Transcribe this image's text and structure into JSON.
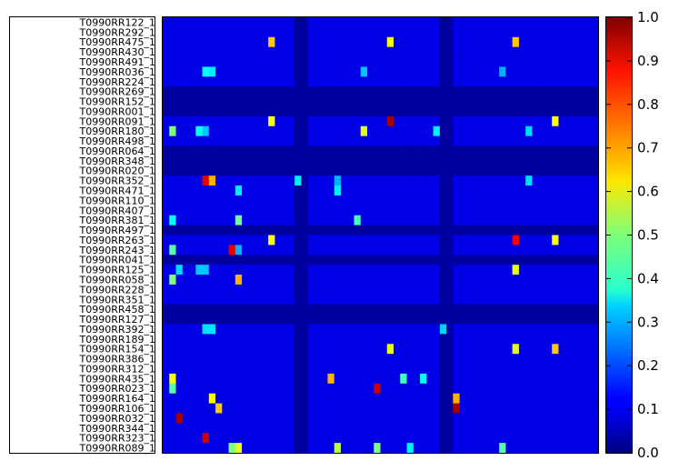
{
  "chart_data": {
    "type": "heatmap",
    "title": "",
    "xlabel": "",
    "ylabel": "",
    "colormap": "jet",
    "rows": [
      "T0990RR122_1",
      "T0990RR292_1",
      "T0990RR475_1",
      "T0990RR430_1",
      "T0990RR491_1",
      "T0990RR036_1",
      "T0990RR224_1",
      "T0990RR269_1",
      "T0990RR152_1",
      "T0990RR001_1",
      "T0990RR091_1",
      "T0990RR180_1",
      "T0990RR498_1",
      "T0990RR064_1",
      "T0990RR348_1",
      "T0990RR020_1",
      "T0990RR352_1",
      "T0990RR471_1",
      "T0990RR110_1",
      "T0990RR407_1",
      "T0990RR381_1",
      "T0990RR497_1",
      "T0990RR263_1",
      "T0990RR243_1",
      "T0990RR041_1",
      "T0990RR125_1",
      "T0990RR058_1",
      "T0990RR228_1",
      "T0990RR351_1",
      "T0990RR458_1",
      "T0990RR127_1",
      "T0990RR392_1",
      "T0990RR189_1",
      "T0990RR154_1",
      "T0990RR386_1",
      "T0990RR312_1",
      "T0990RR435_1",
      "T0990RR023_1",
      "T0990RR164_1",
      "T0990RR106_1",
      "T0990RR032_1",
      "T0990RR344_1",
      "T0990RR323_1",
      "T0990RR089_1"
    ],
    "n_cols": 66,
    "background_value": 0.1,
    "default_row_value": 0.1,
    "low_rows": [
      7,
      8,
      9,
      13,
      14,
      15,
      21,
      24,
      29,
      30
    ],
    "low_row_value": 0.03,
    "low_cols": [
      20,
      21,
      42,
      43
    ],
    "low_col_value": 0.03,
    "highlights": [
      {
        "row": 2,
        "col": 16,
        "v": 0.68
      },
      {
        "row": 2,
        "col": 34,
        "v": 0.62
      },
      {
        "row": 2,
        "col": 53,
        "v": 0.68
      },
      {
        "row": 5,
        "col": 6,
        "v": 0.38
      },
      {
        "row": 5,
        "col": 7,
        "v": 0.36
      },
      {
        "row": 5,
        "col": 30,
        "v": 0.32
      },
      {
        "row": 5,
        "col": 51,
        "v": 0.3
      },
      {
        "row": 10,
        "col": 16,
        "v": 0.62
      },
      {
        "row": 10,
        "col": 34,
        "v": 0.96
      },
      {
        "row": 10,
        "col": 59,
        "v": 0.62
      },
      {
        "row": 11,
        "col": 1,
        "v": 0.5
      },
      {
        "row": 11,
        "col": 5,
        "v": 0.38
      },
      {
        "row": 11,
        "col": 6,
        "v": 0.32
      },
      {
        "row": 11,
        "col": 30,
        "v": 0.6
      },
      {
        "row": 11,
        "col": 41,
        "v": 0.36
      },
      {
        "row": 11,
        "col": 55,
        "v": 0.34
      },
      {
        "row": 16,
        "col": 6,
        "v": 0.9
      },
      {
        "row": 16,
        "col": 7,
        "v": 0.7
      },
      {
        "row": 16,
        "col": 20,
        "v": 0.36
      },
      {
        "row": 16,
        "col": 26,
        "v": 0.3
      },
      {
        "row": 16,
        "col": 55,
        "v": 0.34
      },
      {
        "row": 17,
        "col": 11,
        "v": 0.36
      },
      {
        "row": 17,
        "col": 26,
        "v": 0.36
      },
      {
        "row": 20,
        "col": 1,
        "v": 0.38
      },
      {
        "row": 20,
        "col": 11,
        "v": 0.48
      },
      {
        "row": 20,
        "col": 29,
        "v": 0.44
      },
      {
        "row": 22,
        "col": 16,
        "v": 0.62
      },
      {
        "row": 22,
        "col": 53,
        "v": 0.88
      },
      {
        "row": 22,
        "col": 59,
        "v": 0.62
      },
      {
        "row": 23,
        "col": 1,
        "v": 0.46
      },
      {
        "row": 23,
        "col": 10,
        "v": 0.9
      },
      {
        "row": 23,
        "col": 11,
        "v": 0.3
      },
      {
        "row": 25,
        "col": 2,
        "v": 0.34
      },
      {
        "row": 25,
        "col": 5,
        "v": 0.32
      },
      {
        "row": 25,
        "col": 6,
        "v": 0.32
      },
      {
        "row": 25,
        "col": 53,
        "v": 0.6
      },
      {
        "row": 26,
        "col": 1,
        "v": 0.5
      },
      {
        "row": 26,
        "col": 11,
        "v": 0.7
      },
      {
        "row": 31,
        "col": 6,
        "v": 0.35
      },
      {
        "row": 31,
        "col": 7,
        "v": 0.35
      },
      {
        "row": 31,
        "col": 42,
        "v": 0.33
      },
      {
        "row": 33,
        "col": 34,
        "v": 0.6
      },
      {
        "row": 33,
        "col": 53,
        "v": 0.6
      },
      {
        "row": 33,
        "col": 59,
        "v": 0.68
      },
      {
        "row": 36,
        "col": 1,
        "v": 0.62
      },
      {
        "row": 36,
        "col": 25,
        "v": 0.7
      },
      {
        "row": 36,
        "col": 36,
        "v": 0.44
      },
      {
        "row": 36,
        "col": 39,
        "v": 0.38
      },
      {
        "row": 37,
        "col": 1,
        "v": 0.46
      },
      {
        "row": 37,
        "col": 32,
        "v": 0.92
      },
      {
        "row": 38,
        "col": 7,
        "v": 0.62
      },
      {
        "row": 38,
        "col": 44,
        "v": 0.7
      },
      {
        "row": 39,
        "col": 8,
        "v": 0.68
      },
      {
        "row": 39,
        "col": 44,
        "v": 0.96
      },
      {
        "row": 40,
        "col": 2,
        "v": 0.96
      },
      {
        "row": 42,
        "col": 6,
        "v": 0.92
      },
      {
        "row": 43,
        "col": 10,
        "v": 0.5
      },
      {
        "row": 43,
        "col": 11,
        "v": 0.6
      },
      {
        "row": 43,
        "col": 26,
        "v": 0.55
      },
      {
        "row": 43,
        "col": 32,
        "v": 0.5
      },
      {
        "row": 43,
        "col": 37,
        "v": 0.36
      },
      {
        "row": 43,
        "col": 51,
        "v": 0.46
      }
    ],
    "colorbar": {
      "min": 0.0,
      "max": 1.0,
      "ticks": [
        "0.0",
        "0.1",
        "0.2",
        "0.3",
        "0.4",
        "0.5",
        "0.6",
        "0.7",
        "0.8",
        "0.9",
        "1.0"
      ]
    }
  }
}
